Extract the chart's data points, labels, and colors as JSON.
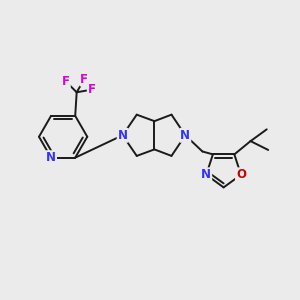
{
  "background_color": "#ebebeb",
  "bond_color": "#1a1a1a",
  "N_color": "#3333ff",
  "O_color": "#cc0000",
  "F_color": "#dd00dd",
  "bond_width": 1.4,
  "font_size": 8.5,
  "figsize": [
    3.0,
    3.0
  ],
  "dpi": 100,
  "xlim": [
    0,
    10
  ],
  "ylim": [
    0,
    10
  ]
}
